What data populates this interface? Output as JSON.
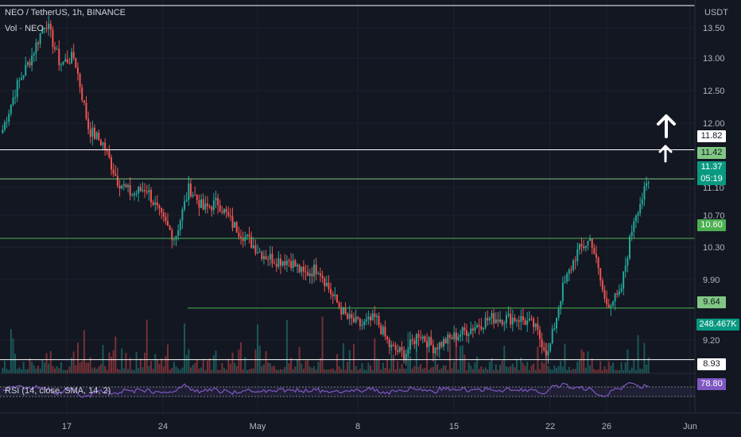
{
  "header": {
    "symbol_line": "NEO / TetherUS, 1h, BINANCE",
    "volume_label": "Vol · NEO",
    "rsi_label": "RSI (14, close, SMA, 14, 2)"
  },
  "chart_data": {
    "type": "candlestick",
    "symbol": "NEO / TetherUS",
    "interval": "1h",
    "exchange": "BINANCE",
    "currency": "USDT",
    "y_axis": {
      "ticks": [
        "13.50",
        "13.00",
        "12.50",
        "12.00",
        "11.10",
        "10.70",
        "10.30",
        "9.90",
        "9.20"
      ],
      "range": [
        8.85,
        13.7
      ]
    },
    "x_axis": {
      "ticks": [
        "17",
        "24",
        "May",
        "8",
        "15",
        "22",
        "26",
        "Jun"
      ]
    },
    "price_path": [
      {
        "x": "14",
        "close": 12.1
      },
      {
        "x": "15",
        "close": 12.7
      },
      {
        "x": "16",
        "close": 13.1
      },
      {
        "x": "17",
        "close": 13.6
      },
      {
        "x": "18",
        "close": 13.0
      },
      {
        "x": "19",
        "close": 13.1
      },
      {
        "x": "20",
        "close": 12.1
      },
      {
        "x": "21",
        "close": 11.9
      },
      {
        "x": "22",
        "close": 11.4
      },
      {
        "x": "23",
        "close": 11.2
      },
      {
        "x": "24",
        "close": 11.3
      },
      {
        "x": "25",
        "close": 10.9
      },
      {
        "x": "26",
        "close": 10.6
      },
      {
        "x": "27",
        "close": 11.3
      },
      {
        "x": "28",
        "close": 11.0
      },
      {
        "x": "29",
        "close": 11.1
      },
      {
        "x": "30",
        "close": 10.8
      },
      {
        "x": "May 1",
        "close": 10.6
      },
      {
        "x": "2",
        "close": 10.4
      },
      {
        "x": "3",
        "close": 10.3
      },
      {
        "x": "4",
        "close": 10.3
      },
      {
        "x": "5",
        "close": 10.1
      },
      {
        "x": "6",
        "close": 10.2
      },
      {
        "x": "7",
        "close": 9.8
      },
      {
        "x": "8",
        "close": 9.5
      },
      {
        "x": "9",
        "close": 9.4
      },
      {
        "x": "10",
        "close": 9.5
      },
      {
        "x": "11",
        "close": 9.1
      },
      {
        "x": "12",
        "close": 9.0
      },
      {
        "x": "13",
        "close": 9.3
      },
      {
        "x": "14",
        "close": 9.1
      },
      {
        "x": "15",
        "close": 9.2
      },
      {
        "x": "16",
        "close": 9.3
      },
      {
        "x": "17",
        "close": 9.4
      },
      {
        "x": "18",
        "close": 9.5
      },
      {
        "x": "19",
        "close": 9.5
      },
      {
        "x": "20",
        "close": 9.5
      },
      {
        "x": "21",
        "close": 9.4
      },
      {
        "x": "22",
        "close": 9.0
      },
      {
        "x": "23",
        "close": 9.9
      },
      {
        "x": "24",
        "close": 10.4
      },
      {
        "x": "25",
        "close": 10.6
      },
      {
        "x": "26",
        "close": 9.7
      },
      {
        "x": "27",
        "close": 9.8
      },
      {
        "x": "28",
        "close": 10.9
      },
      {
        "x": "29",
        "close": 11.37
      }
    ],
    "horizontal_levels": [
      {
        "value": 11.82,
        "color": "#ffffff"
      },
      {
        "value": 11.42,
        "color": "#81c784"
      },
      {
        "value": 10.6,
        "color": "#4caf50"
      },
      {
        "value": 9.64,
        "color": "#4caf50"
      },
      {
        "value": 8.93,
        "color": "#ffffff"
      }
    ],
    "current_price": 11.37,
    "bar_countdown": "05:19",
    "volume_last": "248.467K",
    "rsi_last": 78.8,
    "rsi_band": [
      30,
      70
    ]
  },
  "axis_labels": {
    "currency": "USDT",
    "price_ticks": [
      "13.50",
      "13.00",
      "12.50",
      "12.00",
      "11.10",
      "10.70",
      "10.30",
      "9.90",
      "9.20"
    ],
    "time_ticks": [
      "17",
      "24",
      "May",
      "8",
      "15",
      "22",
      "26",
      "Jun"
    ]
  },
  "price_tags": {
    "level_1182": "11.82",
    "level_1142": "11.42",
    "current": "11.37",
    "countdown": "05:19",
    "level_1060": "10.60",
    "level_964": "9.64",
    "volume": "248.467K",
    "level_893": "8.93",
    "rsi": "78.80"
  },
  "colors": {
    "background": "#131722",
    "up": "#26a69a",
    "down": "#ef5350",
    "rsi": "#7e57c2",
    "arrow": "#ffffff"
  }
}
